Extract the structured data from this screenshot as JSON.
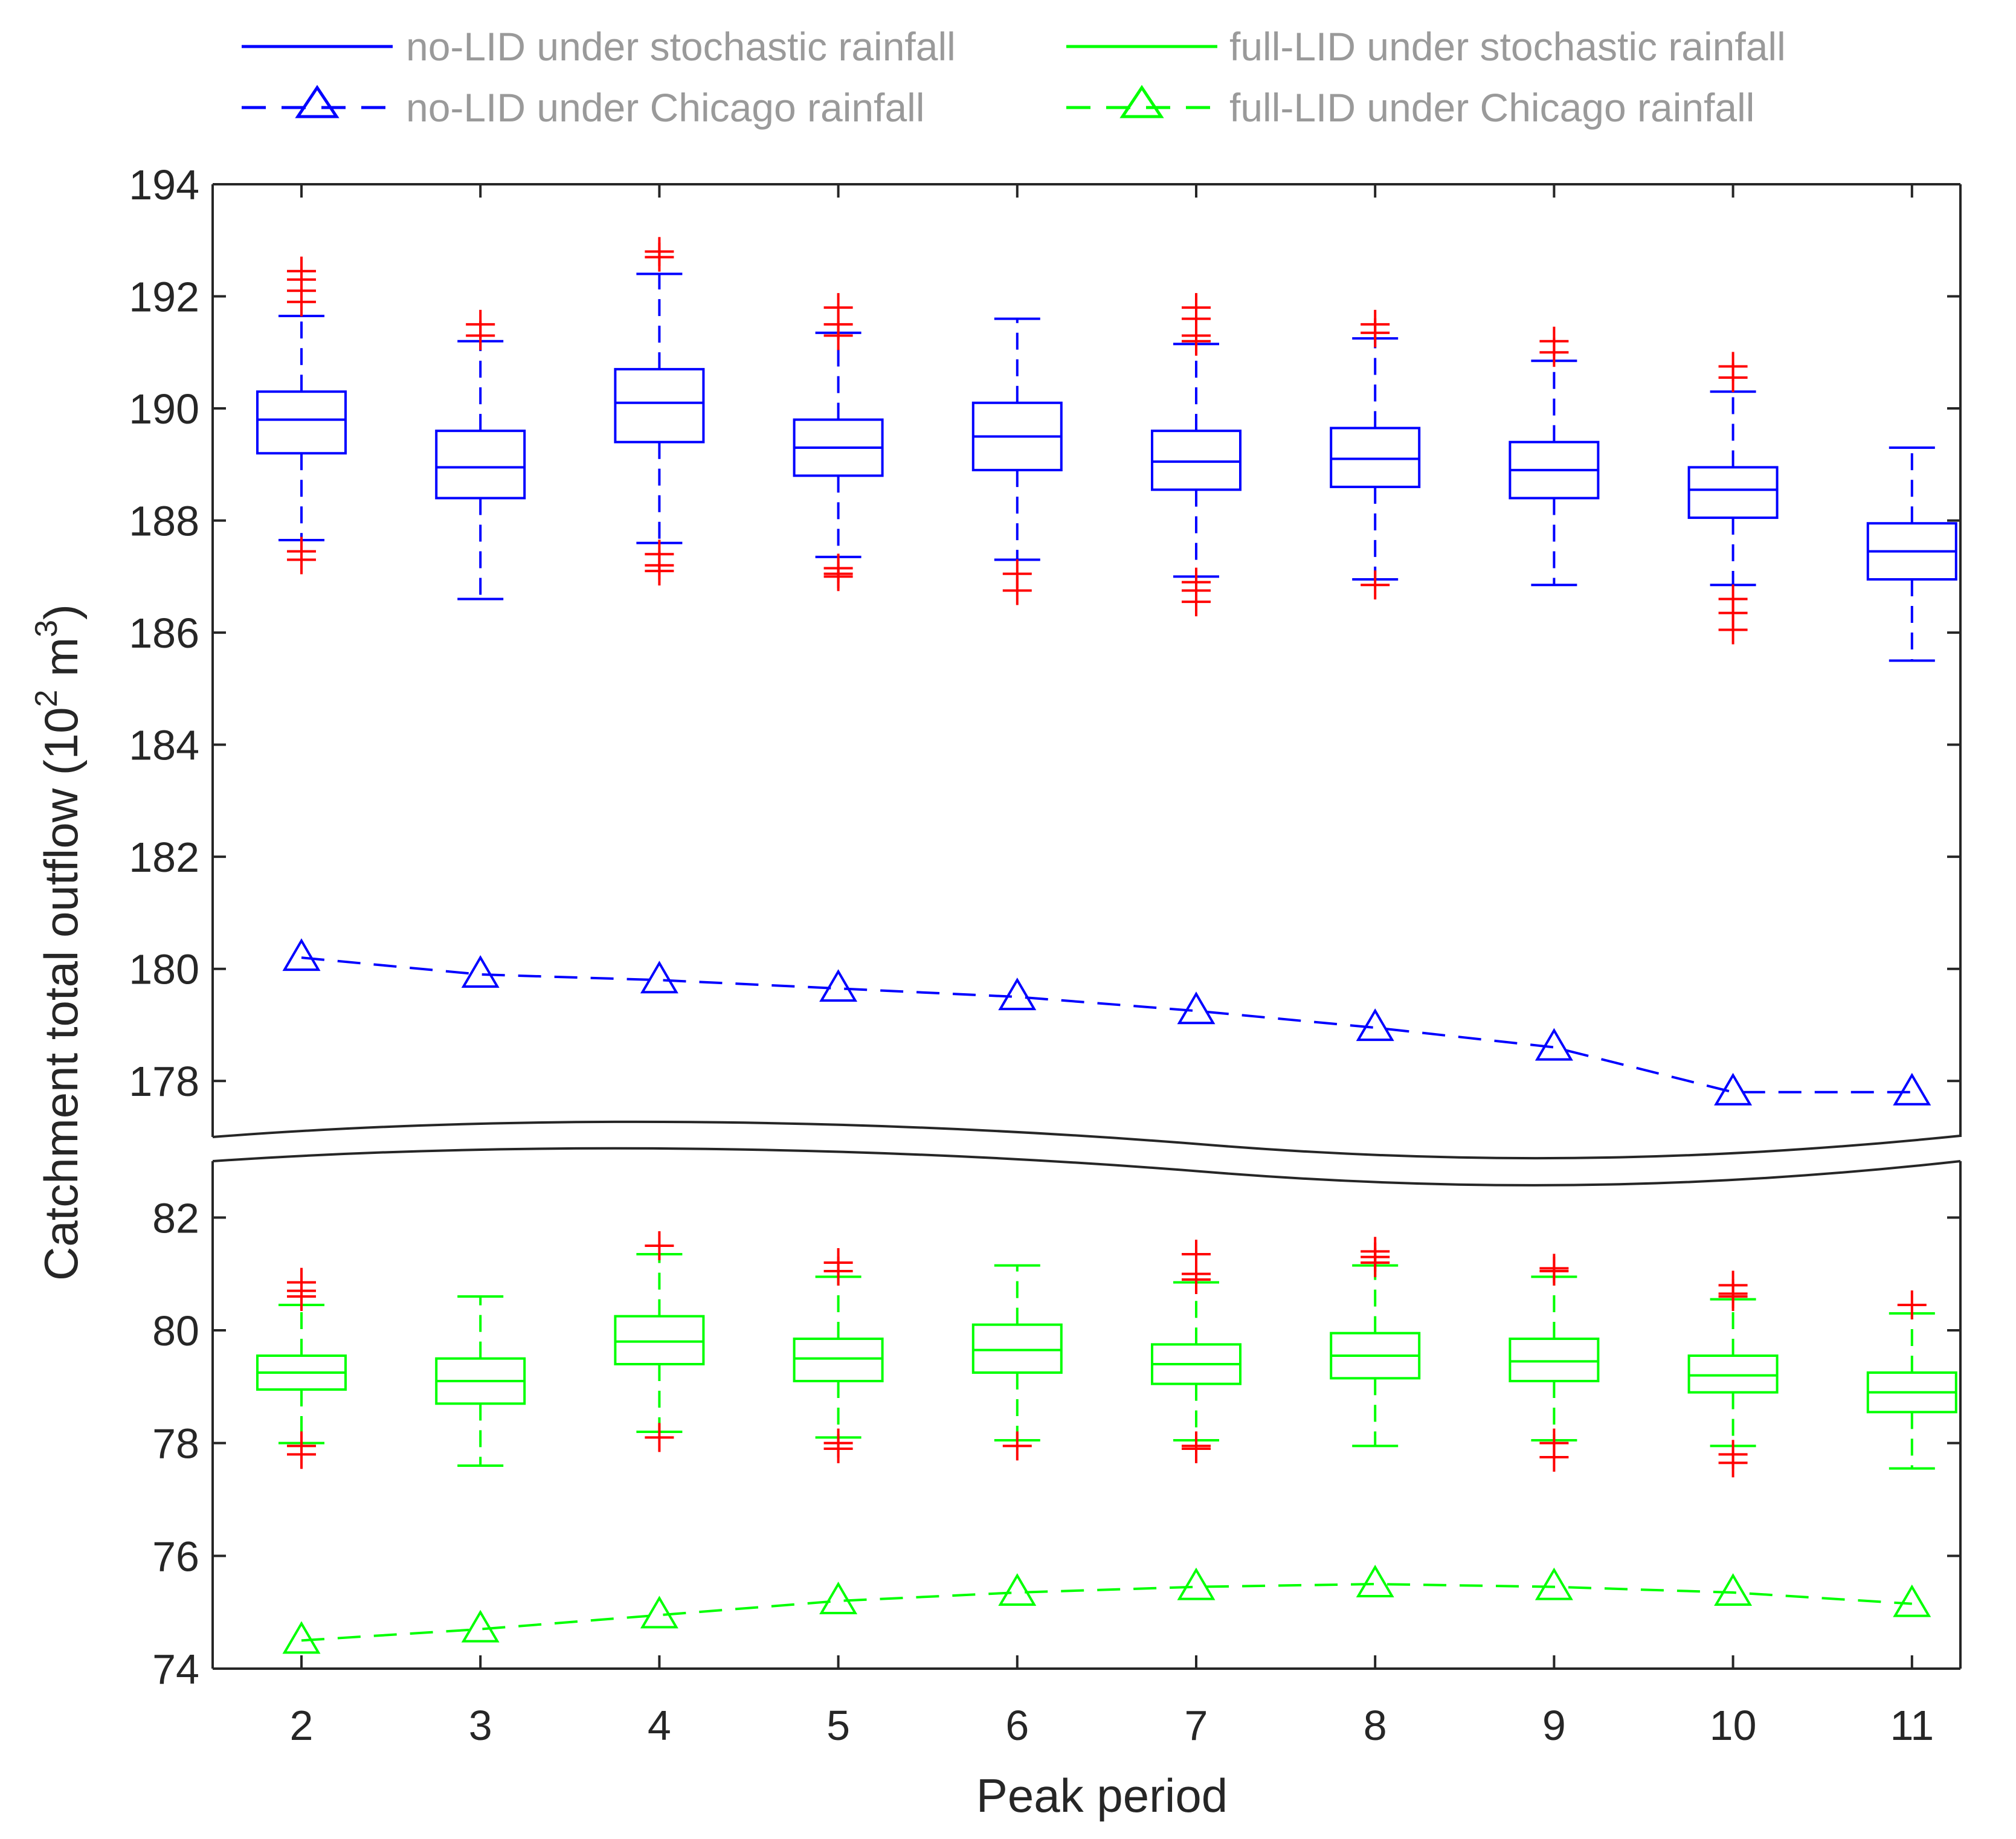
{
  "chart_data": {
    "type": "box",
    "xlabel": "Peak period",
    "ylabel": "Catchment total outflow (10",
    "ylabel_sup": "2",
    "ylabel_unit": " m",
    "ylabel_sup2": "3",
    "ylabel_close": ")",
    "categories": [
      2,
      3,
      4,
      5,
      6,
      7,
      8,
      9,
      10,
      11
    ],
    "category_labels": [
      "2",
      "3",
      "4",
      "5",
      "6",
      "7",
      "8",
      "9",
      "10",
      "11"
    ],
    "axis_break": true,
    "upper_panel": {
      "ylim": [
        177,
        194
      ],
      "yticks": [
        178,
        180,
        182,
        184,
        186,
        188,
        190,
        192,
        194
      ],
      "ytick_labels": [
        "178",
        "180",
        "182",
        "184",
        "186",
        "188",
        "190",
        "192",
        "194"
      ]
    },
    "lower_panel": {
      "ylim": [
        74,
        83
      ],
      "yticks": [
        74,
        76,
        78,
        80,
        82
      ],
      "ytick_labels": [
        "74",
        "76",
        "78",
        "80",
        "82"
      ]
    },
    "legend": [
      {
        "label": "no-LID under stochastic rainfall",
        "color": "#0000ff",
        "style": "solid",
        "marker": "none"
      },
      {
        "label": "full-LID under stochastic rainfall",
        "color": "#00ff00",
        "style": "solid",
        "marker": "none"
      },
      {
        "label": "no-LID under Chicago rainfall",
        "color": "#0000ff",
        "style": "dashed",
        "marker": "triangle"
      },
      {
        "label": "full-LID under Chicago rainfall",
        "color": "#00ff00",
        "style": "dashed",
        "marker": "triangle"
      }
    ],
    "series": [
      {
        "name": "no-LID under stochastic rainfall",
        "kind": "box",
        "panel": "upper",
        "color": "#0000ff",
        "boxes": [
          {
            "q1": 189.2,
            "median": 189.8,
            "q3": 190.3,
            "whisker_low": 187.65,
            "whisker_high": 191.65,
            "outliers": [
              192.45,
              192.3,
              192.1,
              191.9,
              187.45,
              187.3
            ]
          },
          {
            "q1": 188.4,
            "median": 188.95,
            "q3": 189.6,
            "whisker_low": 186.6,
            "whisker_high": 191.2,
            "outliers": [
              191.5,
              191.3
            ]
          },
          {
            "q1": 189.4,
            "median": 190.1,
            "q3": 190.7,
            "whisker_low": 187.6,
            "whisker_high": 192.4,
            "outliers": [
              192.8,
              192.7,
              187.4,
              187.2,
              187.1
            ]
          },
          {
            "q1": 188.8,
            "median": 189.3,
            "q3": 189.8,
            "whisker_low": 187.35,
            "whisker_high": 191.35,
            "outliers": [
              191.8,
              191.5,
              191.3,
              187.15,
              187.05,
              187.0
            ]
          },
          {
            "q1": 188.9,
            "median": 189.5,
            "q3": 190.1,
            "whisker_low": 187.3,
            "whisker_high": 191.6,
            "outliers": [
              187.05,
              186.75
            ]
          },
          {
            "q1": 188.55,
            "median": 189.05,
            "q3": 189.6,
            "whisker_low": 187.0,
            "whisker_high": 191.15,
            "outliers": [
              191.8,
              191.6,
              191.3,
              191.2,
              186.9,
              186.75,
              186.55
            ]
          },
          {
            "q1": 188.6,
            "median": 189.1,
            "q3": 189.65,
            "whisker_low": 186.95,
            "whisker_high": 191.25,
            "outliers": [
              191.5,
              191.35,
              186.85
            ]
          },
          {
            "q1": 188.4,
            "median": 188.9,
            "q3": 189.4,
            "whisker_low": 186.85,
            "whisker_high": 190.85,
            "outliers": [
              191.2,
              191.0
            ]
          },
          {
            "q1": 188.05,
            "median": 188.55,
            "q3": 188.95,
            "whisker_low": 186.85,
            "whisker_high": 190.3,
            "outliers": [
              190.75,
              190.55,
              186.6,
              186.35,
              186.05
            ]
          },
          {
            "q1": 186.95,
            "median": 187.45,
            "q3": 187.95,
            "whisker_low": 185.5,
            "whisker_high": 189.3,
            "outliers": []
          }
        ]
      },
      {
        "name": "full-LID under stochastic rainfall",
        "kind": "box",
        "panel": "lower",
        "color": "#00ff00",
        "boxes": [
          {
            "q1": 78.95,
            "median": 79.25,
            "q3": 79.55,
            "whisker_low": 78.0,
            "whisker_high": 80.45,
            "outliers": [
              80.85,
              80.7,
              80.6,
              77.95,
              77.8
            ]
          },
          {
            "q1": 78.7,
            "median": 79.1,
            "q3": 79.5,
            "whisker_low": 77.6,
            "whisker_high": 80.6,
            "outliers": []
          },
          {
            "q1": 79.4,
            "median": 79.8,
            "q3": 80.25,
            "whisker_low": 78.2,
            "whisker_high": 81.35,
            "outliers": [
              81.5,
              78.1
            ]
          },
          {
            "q1": 79.1,
            "median": 79.5,
            "q3": 79.85,
            "whisker_low": 78.1,
            "whisker_high": 80.95,
            "outliers": [
              81.2,
              81.05,
              78.0,
              77.9
            ]
          },
          {
            "q1": 79.25,
            "median": 79.65,
            "q3": 80.1,
            "whisker_low": 78.05,
            "whisker_high": 81.15,
            "outliers": [
              77.95
            ]
          },
          {
            "q1": 79.05,
            "median": 79.4,
            "q3": 79.75,
            "whisker_low": 78.05,
            "whisker_high": 80.85,
            "outliers": [
              81.35,
              81.0,
              80.9,
              77.95,
              77.9
            ]
          },
          {
            "q1": 79.15,
            "median": 79.55,
            "q3": 79.95,
            "whisker_low": 77.95,
            "whisker_high": 81.15,
            "outliers": [
              81.4,
              81.3,
              81.2
            ]
          },
          {
            "q1": 79.1,
            "median": 79.45,
            "q3": 79.85,
            "whisker_low": 78.05,
            "whisker_high": 80.95,
            "outliers": [
              81.1,
              81.05,
              78.0,
              77.75
            ]
          },
          {
            "q1": 78.9,
            "median": 79.2,
            "q3": 79.55,
            "whisker_low": 77.95,
            "whisker_high": 80.55,
            "outliers": [
              80.8,
              80.65,
              80.6,
              77.8,
              77.65
            ]
          },
          {
            "q1": 78.55,
            "median": 78.9,
            "q3": 79.25,
            "whisker_low": 77.55,
            "whisker_high": 80.3,
            "outliers": [
              80.45
            ]
          }
        ]
      },
      {
        "name": "no-LID under Chicago rainfall",
        "kind": "line",
        "panel": "upper",
        "color": "#0000ff",
        "values": [
          180.2,
          179.9,
          179.8,
          179.65,
          179.5,
          179.25,
          178.95,
          178.6,
          177.8,
          177.8
        ]
      },
      {
        "name": "full-LID under Chicago rainfall",
        "kind": "line",
        "panel": "lower",
        "color": "#00ff00",
        "values": [
          74.5,
          74.7,
          74.95,
          75.2,
          75.35,
          75.45,
          75.5,
          75.45,
          75.35,
          75.15
        ]
      }
    ],
    "outlier_color": "#ff0000"
  }
}
